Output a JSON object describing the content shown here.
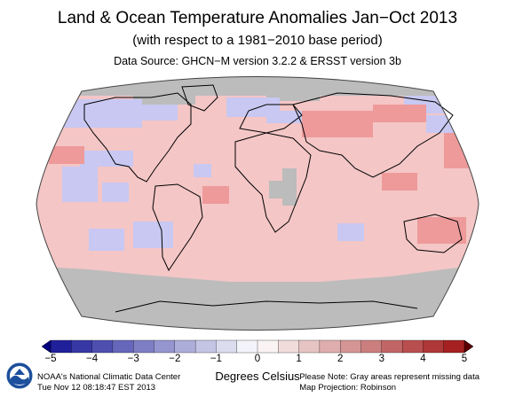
{
  "header": {
    "title": "Land & Ocean Temperature Anomalies Jan−Oct 2013",
    "subtitle": "(with respect to a 1981−2010 base period)",
    "source": "Data Source: GHCN−M version 3.2.2 & ERSST version 3b"
  },
  "legend": {
    "ticks": [
      "−5",
      "−4",
      "−3",
      "−2",
      "−1",
      "0",
      "1",
      "2",
      "3",
      "4",
      "5"
    ],
    "units": "Degrees Celsius",
    "range": [
      -5,
      5
    ],
    "colors": {
      "cold_extreme": "#1a1a9e",
      "cold": "#6464dc",
      "cool": "#b4b4f0",
      "neutral": "#ffffff",
      "warm": "#f4b4b4",
      "hot": "#e06060",
      "hot_extreme": "#9e1a1a"
    }
  },
  "map_colors": {
    "missing": "#bcbcbc",
    "warm_light": "#f4c6c6",
    "warm_mid": "#ee9a9a",
    "cool_light": "#c8c8f2",
    "land_outline": "#000000"
  },
  "footer": {
    "left_line1": "NOAA's National Climatic Data Center",
    "left_line2": "Tue Nov 12 08:18:47 EST 2013",
    "right_line1": "Please Note: Gray areas represent missing data",
    "right_line2": "Map Projection: Robinson"
  },
  "logo": {
    "icon": "noaa-logo-icon"
  }
}
